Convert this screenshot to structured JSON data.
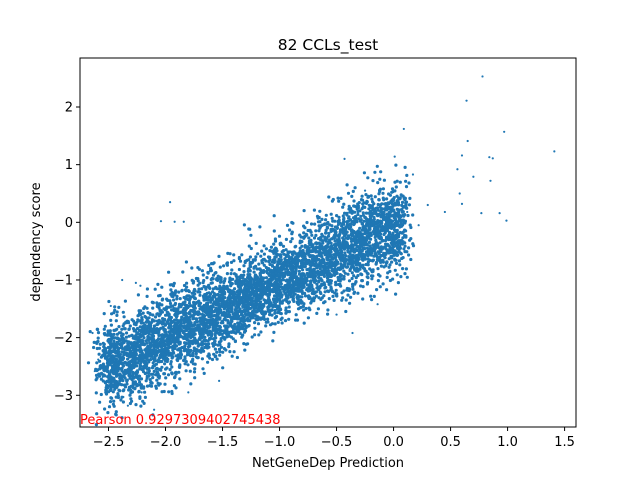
{
  "chart_data": {
    "type": "scatter",
    "title": "82 CCLs_test",
    "xlabel": "NetGeneDep Prediction",
    "ylabel": "dependency score",
    "xlim": [
      -2.75,
      1.6
    ],
    "ylim": [
      -3.55,
      2.85
    ],
    "xticks": [
      -2.5,
      -2.0,
      -1.5,
      -1.0,
      -0.5,
      0.0,
      0.5,
      1.0,
      1.5
    ],
    "xtick_labels": [
      "−2.5",
      "−2.0",
      "−1.5",
      "−1.0",
      "−0.5",
      "0.0",
      "0.5",
      "1.0",
      "1.5"
    ],
    "yticks": [
      -3,
      -2,
      -1,
      0,
      1,
      2
    ],
    "ytick_labels": [
      "−3",
      "−2",
      "−1",
      "0",
      "1",
      "2"
    ],
    "grid": false,
    "marker_color": "#1f77b4",
    "annotation": {
      "text": "Pearson 0.9297309402745438",
      "color": "#ff0000",
      "x": -2.75,
      "y": -3.55
    },
    "series": [
      {
        "values_summary": "dense cloud of tens of thousands of points along a positive diagonal from about (-2.5,-2.6) to (0.1,0)",
        "points": [
          [
            0.78,
            2.53
          ],
          [
            0.64,
            2.11
          ],
          [
            0.97,
            1.57
          ],
          [
            1.41,
            1.23
          ],
          [
            0.09,
            1.62
          ],
          [
            0.01,
            1.14
          ],
          [
            0.65,
            1.41
          ],
          [
            0.84,
            1.13
          ],
          [
            0.87,
            1.11
          ],
          [
            0.6,
            1.16
          ],
          [
            0.7,
            0.79
          ],
          [
            0.56,
            0.92
          ],
          [
            0.85,
            0.72
          ],
          [
            0.58,
            0.5
          ],
          [
            0.6,
            0.32
          ],
          [
            0.77,
            0.16
          ],
          [
            0.99,
            0.03
          ],
          [
            0.93,
            0.16
          ],
          [
            0.45,
            0.18
          ],
          [
            0.17,
            0.83
          ],
          [
            -0.43,
            1.1
          ],
          [
            -0.25,
            0.55
          ],
          [
            -1.96,
            0.35
          ],
          [
            -2.04,
            0.02
          ],
          [
            -1.92,
            0.01
          ],
          [
            -1.84,
            0.01
          ],
          [
            -2.38,
            -1.0
          ],
          [
            -2.26,
            -1.05
          ],
          [
            -2.48,
            -1.45
          ],
          [
            -2.22,
            -1.1
          ],
          [
            -0.1,
            -0.68
          ],
          [
            -0.5,
            -1.6
          ],
          [
            -0.36,
            -1.92
          ],
          [
            -0.14,
            -1.42
          ],
          [
            -2.62,
            -2.58
          ],
          [
            -2.55,
            -2.68
          ],
          [
            -2.46,
            -2.82
          ],
          [
            -2.37,
            -3.03
          ],
          [
            -2.33,
            -3.18
          ],
          [
            -2.1,
            -3.25
          ],
          [
            -2.21,
            -2.95
          ],
          [
            -2.64,
            -1.92
          ],
          [
            -2.59,
            -2.38
          ],
          [
            -1.8,
            -2.95
          ],
          [
            -1.53,
            -2.75
          ],
          [
            0.22,
            -0.05
          ],
          [
            0.3,
            0.3
          ],
          [
            0.12,
            0.18
          ]
        ]
      }
    ]
  }
}
